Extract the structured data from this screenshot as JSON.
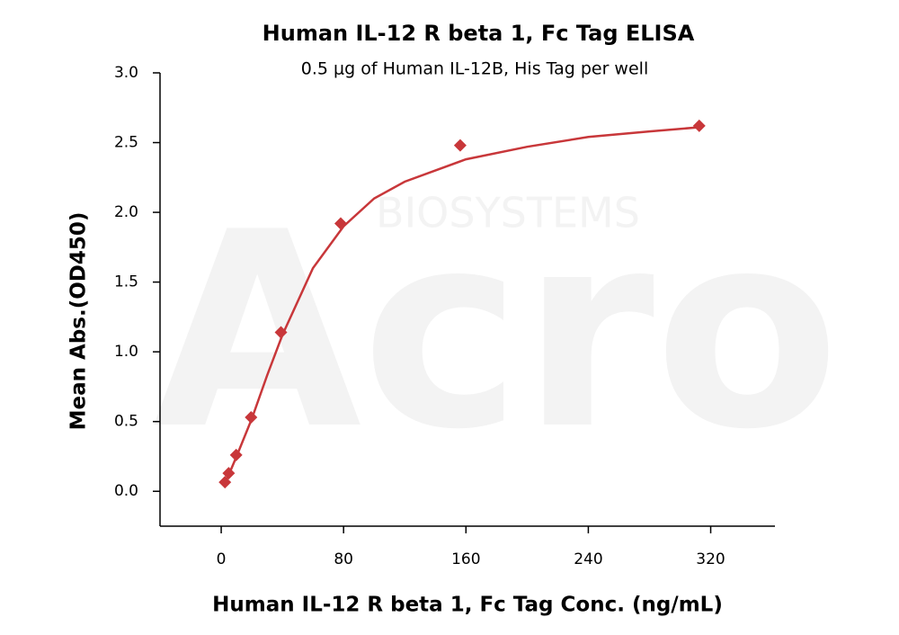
{
  "chart_data": {
    "type": "scatter",
    "title": "Human IL-12 R beta 1, Fc Tag ELISA",
    "subtitle": "0.5 μg of Human IL-12B, His Tag per well",
    "x_label": "Human IL-12 R beta 1, Fc Tag Conc. (ng/mL)",
    "y_label": "Mean Abs.(OD450)",
    "watermark": [
      "Acro",
      "BIOSYSTEMS"
    ],
    "x": [
      2.44,
      4.88,
      9.77,
      19.53,
      39.06,
      78.13,
      156.25,
      312.5
    ],
    "values": [
      0.065,
      0.13,
      0.26,
      0.53,
      1.14,
      1.92,
      2.48,
      2.62
    ],
    "color": "#c8373a",
    "fit": {
      "color": "#c8373a",
      "x": [
        2.44,
        5,
        10,
        20,
        30,
        40,
        60,
        80,
        100,
        120,
        160,
        200,
        240,
        280,
        312.5
      ],
      "values": [
        0.06,
        0.12,
        0.25,
        0.52,
        0.83,
        1.12,
        1.6,
        1.9,
        2.1,
        2.22,
        2.38,
        2.47,
        2.54,
        2.58,
        2.61
      ]
    },
    "xlim": [
      -40,
      362
    ],
    "ylim": [
      -0.25,
      3.0
    ],
    "xticks": [
      0,
      80,
      160,
      240,
      320
    ],
    "yticks": [
      {
        "value": 0,
        "label": "0.0"
      },
      0.5,
      {
        "value": 1,
        "label": "1.0"
      },
      1.5,
      {
        "value": 2,
        "label": "2.0"
      },
      2.5,
      {
        "value": 3,
        "label": "3.0"
      }
    ]
  }
}
